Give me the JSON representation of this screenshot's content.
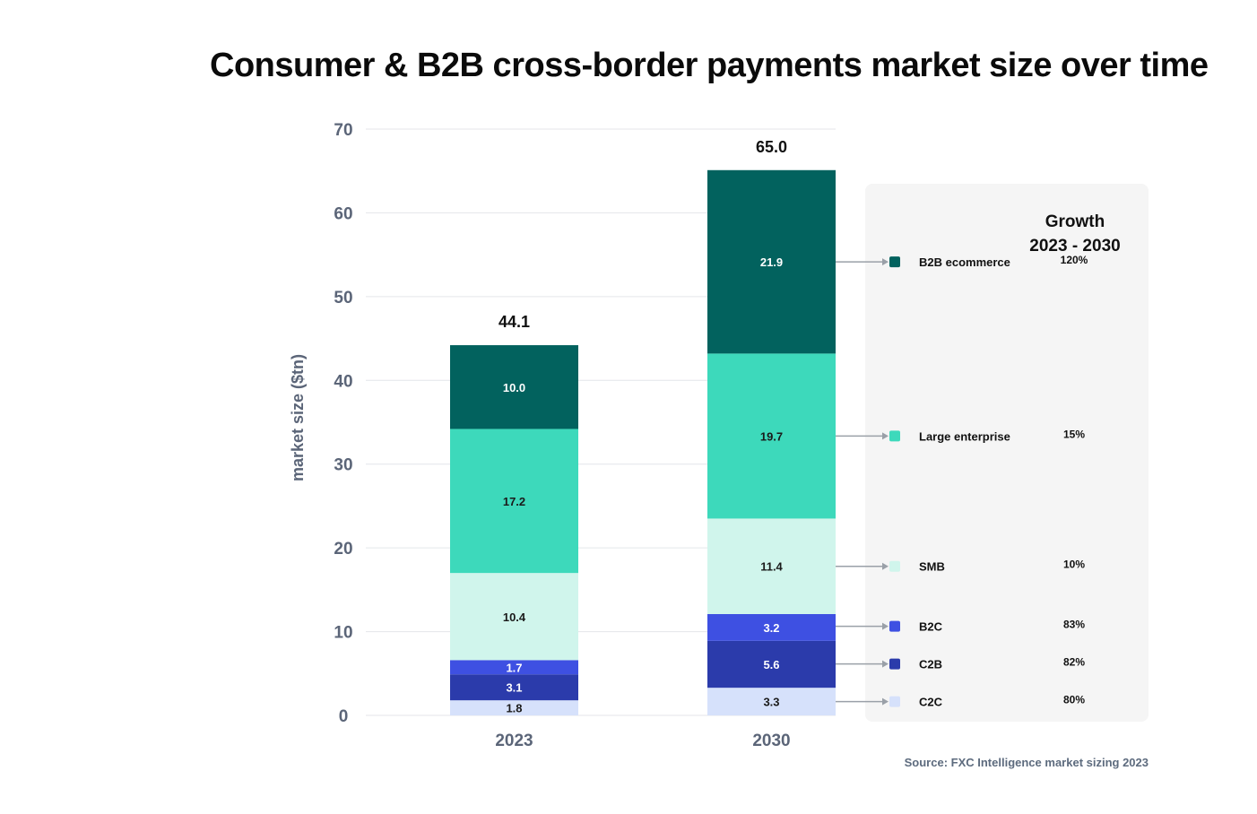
{
  "title": "Consumer & B2B cross-border payments market size over time",
  "source": "Source: FXC Intelligence market sizing 2023",
  "chart_data": {
    "type": "bar",
    "stacked": true,
    "title": "Consumer & B2B cross-border payments market size over time",
    "xlabel": "",
    "ylabel": "market size ($tn)",
    "ylim": [
      0,
      70
    ],
    "yticks": [
      0,
      10,
      20,
      30,
      40,
      50,
      60,
      70
    ],
    "grid": true,
    "categories": [
      "2023",
      "2030"
    ],
    "totals": [
      "44.1",
      "65.0"
    ],
    "series": [
      {
        "name": "C2C",
        "values": [
          1.8,
          3.3
        ],
        "labels": [
          "1.8",
          "3.3"
        ],
        "color": "#d6e1fb",
        "text_color": "#1a1a1a",
        "growth": "80%"
      },
      {
        "name": "C2B",
        "values": [
          3.1,
          5.6
        ],
        "labels": [
          "3.1",
          "5.6"
        ],
        "color": "#2b3bab",
        "text_color": "#ffffff",
        "growth": "82%"
      },
      {
        "name": "B2C",
        "values": [
          1.7,
          3.2
        ],
        "labels": [
          "1.7",
          "3.2"
        ],
        "color": "#3e50e2",
        "text_color": "#ffffff",
        "growth": "83%"
      },
      {
        "name": "SMB",
        "values": [
          10.4,
          11.4
        ],
        "labels": [
          "10.4",
          "11.4"
        ],
        "color": "#d0f5ec",
        "text_color": "#1a1a1a",
        "growth": "10%"
      },
      {
        "name": "Large enterprise",
        "values": [
          17.2,
          19.7
        ],
        "labels": [
          "17.2",
          "19.7"
        ],
        "color": "#3dd9bb",
        "text_color": "#1a1a1a",
        "growth": "15%"
      },
      {
        "name": "B2B ecommerce",
        "values": [
          10.0,
          21.9
        ],
        "labels": [
          "10.0",
          "21.9"
        ],
        "color": "#02625e",
        "text_color": "#ffffff",
        "growth": "120%"
      }
    ],
    "growth_panel": {
      "heading_line1": "Growth",
      "heading_line2": "2023 - 2030"
    },
    "legend_placement": "right"
  }
}
